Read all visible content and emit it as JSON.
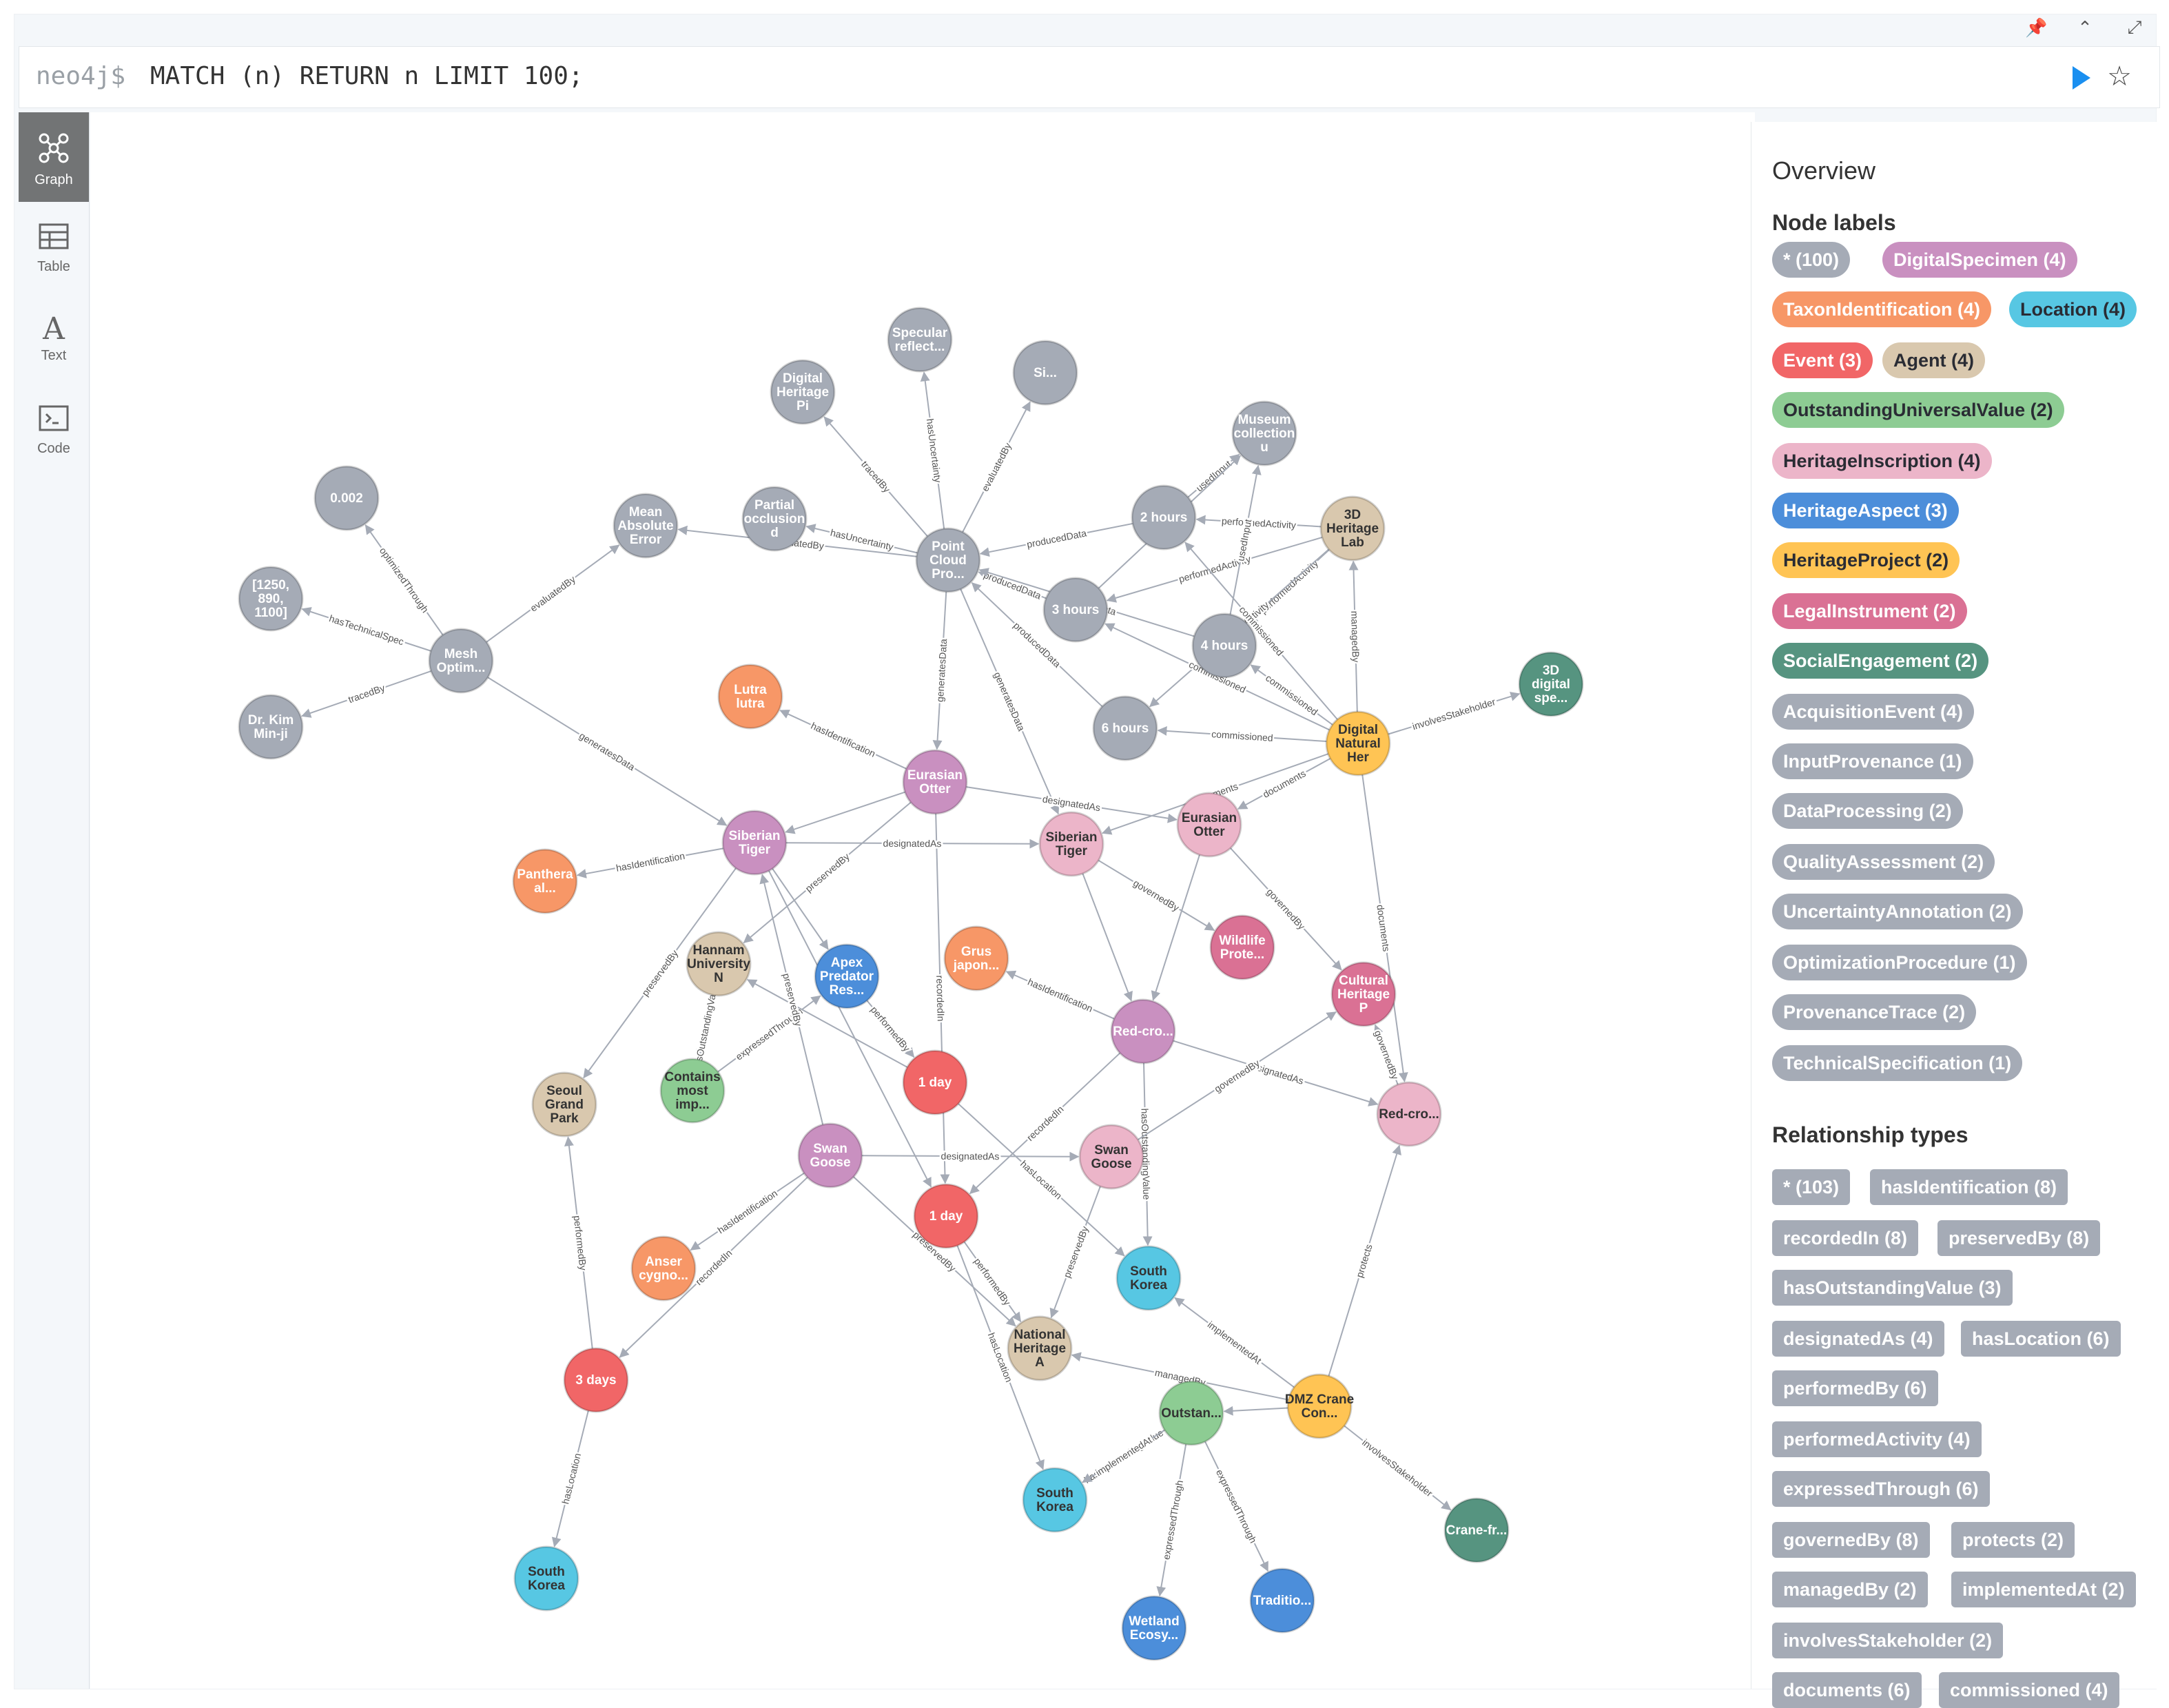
{
  "editor": {
    "prompt": "neo4j$",
    "query": "MATCH (n) RETURN n LIMIT 100;"
  },
  "top_icons": [
    "pin-icon",
    "chevron-up-icon",
    "collapse-icon"
  ],
  "sidebar": [
    {
      "key": "graph",
      "label": "Graph",
      "icon": "graph-icon",
      "active": true
    },
    {
      "key": "table",
      "label": "Table",
      "icon": "table-icon",
      "active": false
    },
    {
      "key": "text",
      "label": "Text",
      "icon": "text-icon",
      "active": false
    },
    {
      "key": "code",
      "label": "Code",
      "icon": "code-icon",
      "active": false
    }
  ],
  "overview": {
    "title": "Overview",
    "node_labels_title": "Node labels",
    "node_labels": [
      {
        "text": "* (100)",
        "color": "#a5abb6",
        "fg": "#ffffff"
      },
      {
        "text": "DigitalSpecimen (4)",
        "color": "#c990c0",
        "fg": "#ffffff"
      },
      {
        "text": "TaxonIdentification (4)",
        "color": "#f79767",
        "fg": "#ffffff"
      },
      {
        "text": "Location (4)",
        "color": "#57c7e3",
        "fg": "#2a2c34"
      },
      {
        "text": "Event (3)",
        "color": "#f16667",
        "fg": "#ffffff"
      },
      {
        "text": "Agent (4)",
        "color": "#d9c8ae",
        "fg": "#2a2c34"
      },
      {
        "text": "OutstandingUniversalValue (2)",
        "color": "#8dcc93",
        "fg": "#2a2c34"
      },
      {
        "text": "HeritageInscription (4)",
        "color": "#ecb5c9",
        "fg": "#2a2c34"
      },
      {
        "text": "HeritageAspect (3)",
        "color": "#4c8eda",
        "fg": "#ffffff"
      },
      {
        "text": "HeritageProject (2)",
        "color": "#ffc454",
        "fg": "#2a2c34"
      },
      {
        "text": "LegalInstrument (2)",
        "color": "#da7194",
        "fg": "#ffffff"
      },
      {
        "text": "SocialEngagement (2)",
        "color": "#569480",
        "fg": "#ffffff"
      },
      {
        "text": "AcquisitionEvent (4)",
        "color": "#a5abb6",
        "fg": "#ffffff"
      },
      {
        "text": "InputProvenance (1)",
        "color": "#a5abb6",
        "fg": "#ffffff"
      },
      {
        "text": "DataProcessing (2)",
        "color": "#a5abb6",
        "fg": "#ffffff"
      },
      {
        "text": "QualityAssessment (2)",
        "color": "#a5abb6",
        "fg": "#ffffff"
      },
      {
        "text": "UncertaintyAnnotation (2)",
        "color": "#a5abb6",
        "fg": "#ffffff"
      },
      {
        "text": "OptimizationProcedure (1)",
        "color": "#a5abb6",
        "fg": "#ffffff"
      },
      {
        "text": "ProvenanceTrace (2)",
        "color": "#a5abb6",
        "fg": "#ffffff"
      },
      {
        "text": "TechnicalSpecification (1)",
        "color": "#a5abb6",
        "fg": "#ffffff"
      }
    ],
    "rel_types_title": "Relationship types",
    "rel_types": [
      "* (103)",
      "hasIdentification (8)",
      "recordedIn (8)",
      "preservedBy (8)",
      "hasOutstandingValue (3)",
      "designatedAs (4)",
      "hasLocation (6)",
      "performedBy (6)",
      "performedActivity (4)",
      "expressedThrough (6)",
      "governedBy (8)",
      "protects (2)",
      "managedBy (2)",
      "implementedAt (2)",
      "involvesStakeholder (2)",
      "documents (6)",
      "commissioned (4)"
    ]
  },
  "graph": {
    "colors": {
      "grey": "#a5abb6",
      "purple": "#c990c0",
      "orange": "#f79767",
      "cyan": "#57c7e3",
      "red": "#f16667",
      "tan": "#d9c8ae",
      "green": "#8dcc93",
      "pink": "#ecb5c9",
      "blue": "#4c8eda",
      "yellow": "#ffc454",
      "rose": "#da7194",
      "teal": "#569480"
    },
    "nodes": [
      {
        "id": "n1",
        "label": "0.002",
        "c": "grey"
      },
      {
        "id": "n2",
        "label": "Mean Absolute Error",
        "c": "grey"
      },
      {
        "id": "n3",
        "label": "[1250, 890, 1100]",
        "c": "grey"
      },
      {
        "id": "n4",
        "label": "Mesh Optim...",
        "c": "grey"
      },
      {
        "id": "n5",
        "label": "Dr. Kim Min-ji",
        "c": "grey"
      },
      {
        "id": "n6",
        "label": "Digital Heritage Pi",
        "c": "grey"
      },
      {
        "id": "n7",
        "label": "Specular reflect...",
        "c": "grey"
      },
      {
        "id": "n8",
        "label": "Si...",
        "c": "grey"
      },
      {
        "id": "n9",
        "label": "Partial occlusion d",
        "c": "grey"
      },
      {
        "id": "n10",
        "label": "Point Cloud Pro...",
        "c": "grey"
      },
      {
        "id": "n11",
        "label": "Museum collection u",
        "c": "grey"
      },
      {
        "id": "n12",
        "label": "2 hours",
        "c": "grey"
      },
      {
        "id": "n13",
        "label": "3 hours",
        "c": "grey"
      },
      {
        "id": "n14",
        "label": "4 hours",
        "c": "grey"
      },
      {
        "id": "n15",
        "label": "6 hours",
        "c": "grey"
      },
      {
        "id": "n16",
        "label": "3D Heritage Lab",
        "c": "tan"
      },
      {
        "id": "n17",
        "label": "3D digital spe...",
        "c": "teal"
      },
      {
        "id": "n18",
        "label": "Digital Natural Her",
        "c": "yellow"
      },
      {
        "id": "n19",
        "label": "Lutra lutra",
        "c": "orange"
      },
      {
        "id": "n20",
        "label": "Eurasian Otter",
        "c": "purple"
      },
      {
        "id": "n21",
        "label": "Siberian Tiger",
        "c": "purple"
      },
      {
        "id": "n22",
        "label": "Siberian Tiger",
        "c": "pink"
      },
      {
        "id": "n23",
        "label": "Eurasian Otter",
        "c": "pink"
      },
      {
        "id": "n24",
        "label": "Panthera al...",
        "c": "orange"
      },
      {
        "id": "n25",
        "label": "Hannam University N",
        "c": "tan"
      },
      {
        "id": "n26",
        "label": "Apex Predator Res...",
        "c": "blue"
      },
      {
        "id": "n27",
        "label": "Grus japon...",
        "c": "orange"
      },
      {
        "id": "n28",
        "label": "Wildlife Prote...",
        "c": "rose"
      },
      {
        "id": "n29",
        "label": "Cultural Heritage P",
        "c": "rose"
      },
      {
        "id": "n30",
        "label": "Red-cro...",
        "c": "purple"
      },
      {
        "id": "n31",
        "label": "Seoul Grand Park",
        "c": "tan"
      },
      {
        "id": "n32",
        "label": "Contains most imp...",
        "c": "green"
      },
      {
        "id": "n33",
        "label": "1 day",
        "c": "red"
      },
      {
        "id": "n34",
        "label": "Red-cro...",
        "c": "pink"
      },
      {
        "id": "n35",
        "label": "Swan Goose",
        "c": "purple"
      },
      {
        "id": "n36",
        "label": "Swan Goose",
        "c": "pink"
      },
      {
        "id": "n37",
        "label": "1 day",
        "c": "red"
      },
      {
        "id": "n38",
        "label": "Anser cygno...",
        "c": "orange"
      },
      {
        "id": "n39",
        "label": "South Korea",
        "c": "cyan"
      },
      {
        "id": "n40",
        "label": "National Heritage A",
        "c": "tan"
      },
      {
        "id": "n41",
        "label": "3 days",
        "c": "red"
      },
      {
        "id": "n42",
        "label": "DMZ Crane Con...",
        "c": "yellow"
      },
      {
        "id": "n43",
        "label": "Outstan...",
        "c": "green"
      },
      {
        "id": "n44",
        "label": "South Korea",
        "c": "cyan"
      },
      {
        "id": "n45",
        "label": "Crane-fr...",
        "c": "teal"
      },
      {
        "id": "n46",
        "label": "South Korea",
        "c": "cyan"
      },
      {
        "id": "n47",
        "label": "Wetland Ecosy...",
        "c": "blue"
      },
      {
        "id": "n48",
        "label": "Traditio...",
        "c": "blue"
      }
    ],
    "edges": [
      {
        "s": "n4",
        "t": "n1",
        "label": "optimizedThrough"
      },
      {
        "s": "n4",
        "t": "n2",
        "label": "evaluatedBy"
      },
      {
        "s": "n4",
        "t": "n3",
        "label": "hasTechnicalSpec"
      },
      {
        "s": "n4",
        "t": "n5",
        "label": "tracedBy"
      },
      {
        "s": "n4",
        "t": "n21",
        "label": "generatesData"
      },
      {
        "s": "n10",
        "t": "n6",
        "label": "tracedBy"
      },
      {
        "s": "n10",
        "t": "n7",
        "label": "hasUncertainty"
      },
      {
        "s": "n10",
        "t": "n8",
        "label": "evaluatedBy"
      },
      {
        "s": "n10",
        "t": "n9",
        "label": "hasUncertainty"
      },
      {
        "s": "n10",
        "t": "n2",
        "label": "evaluatedBy"
      },
      {
        "s": "n10",
        "t": "n20",
        "label": "generatesData"
      },
      {
        "s": "n10",
        "t": "n22",
        "label": "generatesData"
      },
      {
        "s": "n12",
        "t": "n10",
        "label": "producedData"
      },
      {
        "s": "n13",
        "t": "n10",
        "label": "producedData"
      },
      {
        "s": "n14",
        "t": "n10",
        "label": "producedData"
      },
      {
        "s": "n15",
        "t": "n10",
        "label": "producedData"
      },
      {
        "s": "n16",
        "t": "n12",
        "label": "performedActivity"
      },
      {
        "s": "n16",
        "t": "n13",
        "label": "performedActivity"
      },
      {
        "s": "n16",
        "t": "n14",
        "label": "performedActivity"
      },
      {
        "s": "n16",
        "t": "n15",
        "label": "performedActivity"
      },
      {
        "s": "n12",
        "t": "n11",
        "label": "usedInput"
      },
      {
        "s": "n13",
        "t": "n11",
        "label": "usedInput"
      },
      {
        "s": "n14",
        "t": "n11",
        "label": "usedInput"
      },
      {
        "s": "n18",
        "t": "n12",
        "label": "commissioned"
      },
      {
        "s": "n18",
        "t": "n13",
        "label": "commissioned"
      },
      {
        "s": "n18",
        "t": "n14",
        "label": "commissioned"
      },
      {
        "s": "n18",
        "t": "n15",
        "label": "commissioned"
      },
      {
        "s": "n18",
        "t": "n16",
        "label": "managedBy"
      },
      {
        "s": "n18",
        "t": "n17",
        "label": "involvesStakeholder"
      },
      {
        "s": "n18",
        "t": "n23",
        "label": "documents"
      },
      {
        "s": "n18",
        "t": "n22",
        "label": "documents"
      },
      {
        "s": "n18",
        "t": "n34",
        "label": "documents"
      },
      {
        "s": "n20",
        "t": "n19",
        "label": "hasIdentification"
      },
      {
        "s": "n20",
        "t": "n23",
        "label": "designatedAs"
      },
      {
        "s": "n20",
        "t": "n21",
        "label": ""
      },
      {
        "s": "n20",
        "t": "n25",
        "label": "preservedBy"
      },
      {
        "s": "n20",
        "t": "n37",
        "label": "recordedIn"
      },
      {
        "s": "n21",
        "t": "n24",
        "label": "hasIdentification"
      },
      {
        "s": "n21",
        "t": "n22",
        "label": "designatedAs"
      },
      {
        "s": "n21",
        "t": "n31",
        "label": "preservedBy"
      },
      {
        "s": "n21",
        "t": "n26",
        "label": ""
      },
      {
        "s": "n21",
        "t": "n37",
        "label": ""
      },
      {
        "s": "n22",
        "t": "n28",
        "label": "governedBy"
      },
      {
        "s": "n22",
        "t": "n30",
        "label": ""
      },
      {
        "s": "n23",
        "t": "n29",
        "label": "governedBy"
      },
      {
        "s": "n23",
        "t": "n30",
        "label": ""
      },
      {
        "s": "n30",
        "t": "n27",
        "label": "hasIdentification"
      },
      {
        "s": "n30",
        "t": "n34",
        "label": "designatedAs"
      },
      {
        "s": "n30",
        "t": "n37",
        "label": "recordedIn"
      },
      {
        "s": "n30",
        "t": "n39",
        "label": "hasOutstandingValue"
      },
      {
        "s": "n32",
        "t": "n26",
        "label": "expressedThrough"
      },
      {
        "s": "n26",
        "t": "n33",
        "label": "performedBy"
      },
      {
        "s": "n25",
        "t": "n32",
        "label": "hasOutstandingValue"
      },
      {
        "s": "n33",
        "t": "n25",
        "label": ""
      },
      {
        "s": "n33",
        "t": "n39",
        "label": "hasLocation"
      },
      {
        "s": "n35",
        "t": "n36",
        "label": "designatedAs"
      },
      {
        "s": "n35",
        "t": "n38",
        "label": "hasIdentification"
      },
      {
        "s": "n35",
        "t": "n41",
        "label": "recordedIn"
      },
      {
        "s": "n35",
        "t": "n40",
        "label": "preservedBy"
      },
      {
        "s": "n35",
        "t": "n21",
        "label": "preservedBy"
      },
      {
        "s": "n36",
        "t": "n29",
        "label": "governedBy"
      },
      {
        "s": "n36",
        "t": "n40",
        "label": "preservedBy"
      },
      {
        "s": "n34",
        "t": "n29",
        "label": "governedBy"
      },
      {
        "s": "n37",
        "t": "n40",
        "label": "performedBy"
      },
      {
        "s": "n37",
        "t": "n44",
        "label": "hasLocation"
      },
      {
        "s": "n41",
        "t": "n31",
        "label": "performedBy"
      },
      {
        "s": "n41",
        "t": "n46",
        "label": "hasLocation"
      },
      {
        "s": "n42",
        "t": "n39",
        "label": "implementedAt"
      },
      {
        "s": "n42",
        "t": "n40",
        "label": "managedBy"
      },
      {
        "s": "n42",
        "t": "n43",
        "label": ""
      },
      {
        "s": "n42",
        "t": "n45",
        "label": "involvesStakeholder"
      },
      {
        "s": "n42",
        "t": "n34",
        "label": "protects"
      },
      {
        "s": "n43",
        "t": "n44",
        "label": "hasOutstandingValue"
      },
      {
        "s": "n43",
        "t": "n47",
        "label": "expressedThrough"
      },
      {
        "s": "n43",
        "t": "n48",
        "label": "expressedThrough"
      },
      {
        "s": "n43",
        "t": "n44",
        "label": "implementedAt"
      }
    ]
  }
}
